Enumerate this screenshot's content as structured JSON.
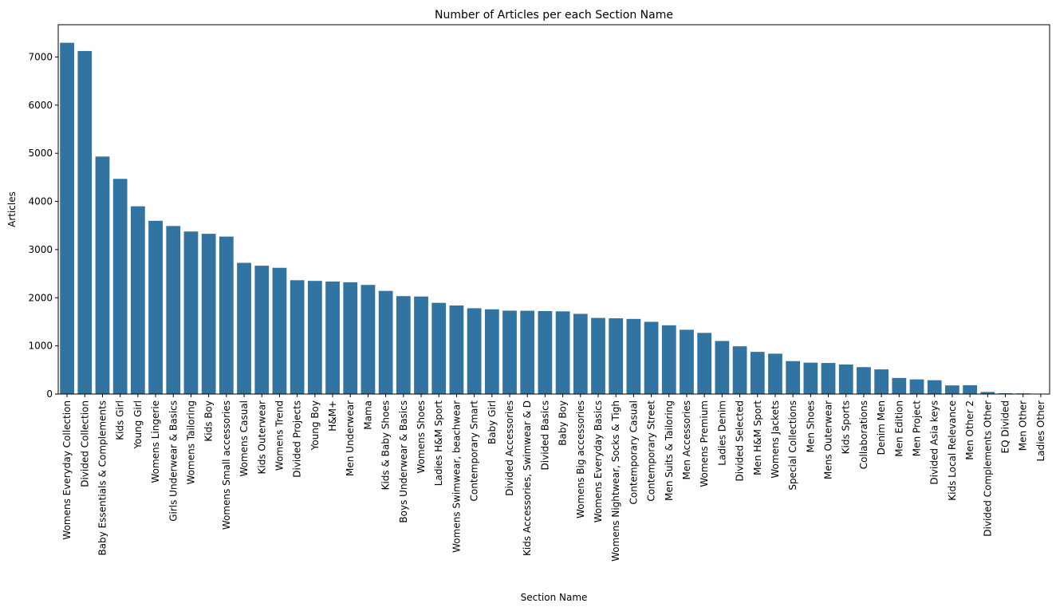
{
  "chart_data": {
    "type": "bar",
    "title": "Number of Articles per each Section Name",
    "xlabel": "Section Name",
    "ylabel": "Articles",
    "ylim": [
      0,
      7670
    ],
    "yticks": [
      0,
      1000,
      2000,
      3000,
      4000,
      5000,
      6000,
      7000
    ],
    "grid": false,
    "bar_color": "#3274a1",
    "categories": [
      "Womens Everyday Collection",
      "Divided Collection",
      "Baby Essentials & Complements",
      "Kids Girl",
      "Young Girl",
      "Womens Lingerie",
      "Girls Underwear & Basics",
      "Womens Tailoring",
      "Kids Boy",
      "Womens Small accessories",
      "Womens Casual",
      "Kids Outerwear",
      "Womens Trend",
      "Divided Projects",
      "Young Boy",
      "H&M+",
      "Men Underwear",
      "Mama",
      "Kids & Baby Shoes",
      "Boys Underwear & Basics",
      "Womens Shoes",
      "Ladies H&M Sport",
      "Womens Swimwear, beachwear",
      "Contemporary Smart",
      "Baby Girl",
      "Divided Accessories",
      "Kids Accessories, Swimwear & D",
      "Divided Basics",
      "Baby Boy",
      "Womens Big accessories",
      "Womens Everyday Basics",
      "Womens Nightwear, Socks & Tigh",
      "Contemporary Casual",
      "Contemporary Street",
      "Men Suits & Tailoring",
      "Men Accessories",
      "Womens Premium",
      "Ladies Denim",
      "Divided Selected",
      "Men H&M Sport",
      "Womens Jackets",
      "Special Collections",
      "Men Shoes",
      "Mens Outerwear",
      "Kids Sports",
      "Collaborations",
      "Denim Men",
      "Men Edition",
      "Men Project",
      "Divided Asia keys",
      "Kids Local Relevance",
      "Men Other 2",
      "Divided Complements Other",
      "EQ Divided",
      "Men Other",
      "Ladies Other"
    ],
    "values": [
      7295,
      7124,
      4932,
      4469,
      3899,
      3598,
      3490,
      3376,
      3328,
      3270,
      2725,
      2665,
      2622,
      2364,
      2350,
      2337,
      2322,
      2266,
      2142,
      2034,
      2026,
      1894,
      1839,
      1782,
      1760,
      1732,
      1730,
      1723,
      1717,
      1665,
      1581,
      1573,
      1560,
      1500,
      1428,
      1335,
      1270,
      1102,
      991,
      876,
      838,
      684,
      652,
      645,
      614,
      559,
      512,
      334,
      304,
      287,
      179,
      183,
      43,
      18,
      14,
      2
    ]
  }
}
